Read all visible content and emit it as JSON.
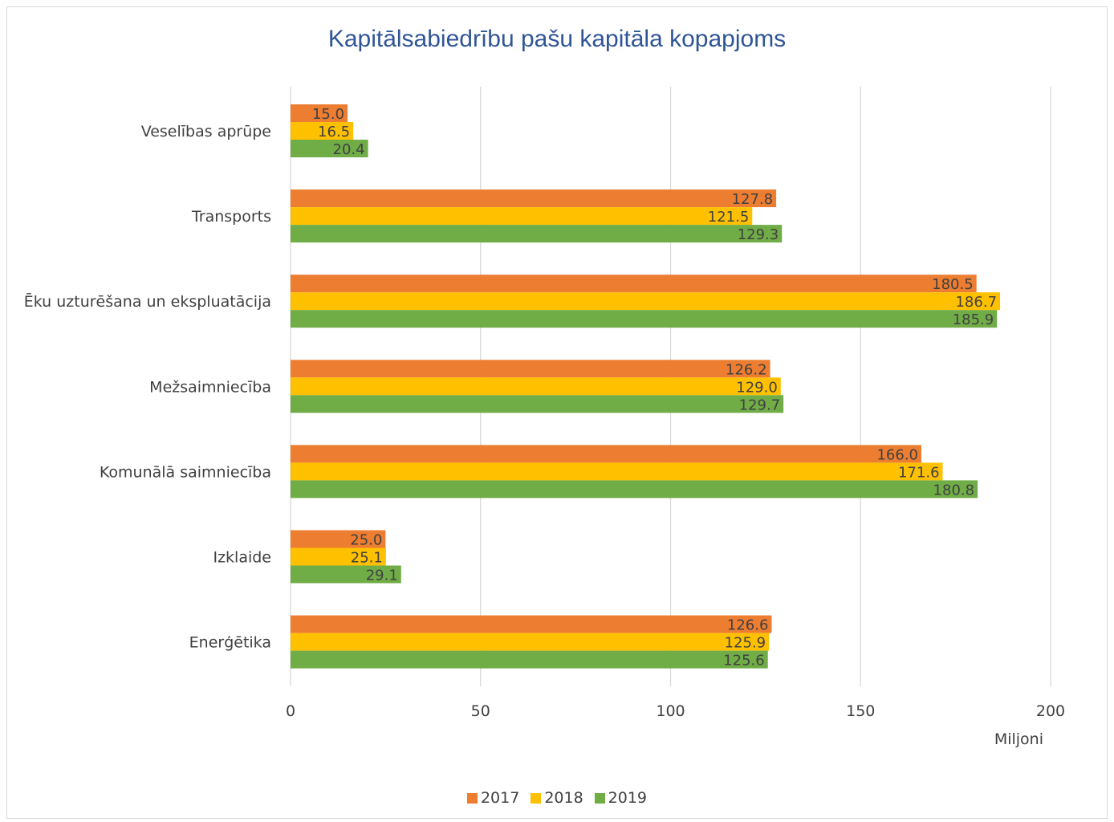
{
  "chart_data": {
    "type": "bar",
    "orientation": "horizontal",
    "title": "Kapitālsabiedrību pašu kapitāla kopapjoms",
    "xlabel": "Miljoni",
    "xlim": [
      0,
      200
    ],
    "x_ticks": [
      "0",
      "50",
      "100",
      "150",
      "200"
    ],
    "grid": true,
    "legend_position": "bottom",
    "categories": [
      "Veselības aprūpe",
      "Transports",
      "Ēku uzturēšana un ekspluatācija",
      "Mežsaimniecība",
      "Komunālā saimniecība",
      "Izklaide",
      "Enerģētika"
    ],
    "series": [
      {
        "name": "2017",
        "color": "#ed7d31",
        "values": [
          15.0,
          127.8,
          180.5,
          126.2,
          166.0,
          25.0,
          126.6
        ]
      },
      {
        "name": "2018",
        "color": "#ffc000",
        "values": [
          16.5,
          121.5,
          186.7,
          129.0,
          171.6,
          25.1,
          125.9
        ]
      },
      {
        "name": "2019",
        "color": "#70ad47",
        "values": [
          20.4,
          129.3,
          185.9,
          129.7,
          180.8,
          29.1,
          125.6
        ]
      }
    ]
  }
}
